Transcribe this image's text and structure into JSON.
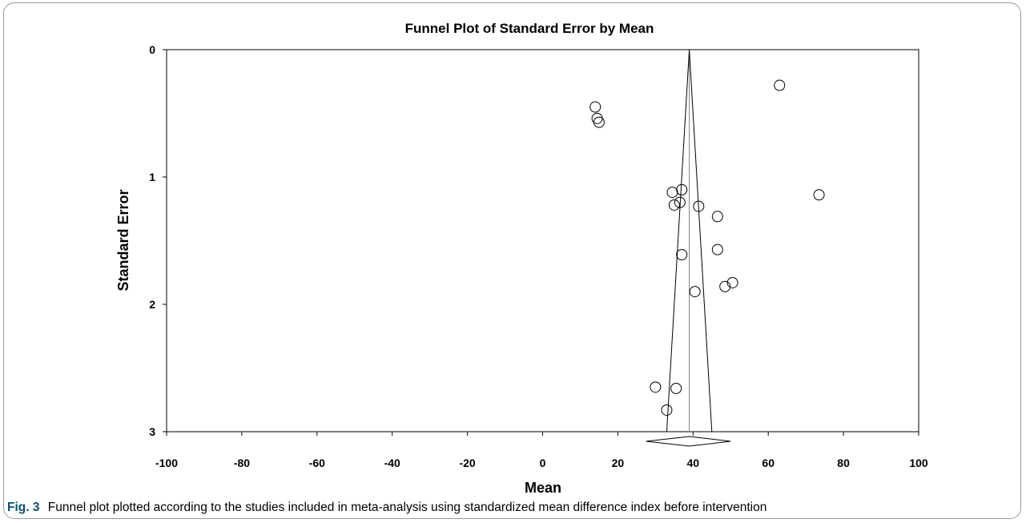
{
  "chart_data": {
    "type": "scatter",
    "title": "Funnel Plot of Standard Error by Mean",
    "xlabel": "Mean",
    "ylabel": "Standard Error",
    "xlim": [
      -100,
      100
    ],
    "ylim": [
      0,
      3
    ],
    "y_inverted": true,
    "x_ticks": [
      -100,
      -80,
      -60,
      -40,
      -20,
      0,
      20,
      40,
      60,
      80,
      100
    ],
    "y_ticks": [
      0,
      1,
      2,
      3
    ],
    "pooled_mean": 39,
    "funnel": {
      "apex_se": 0,
      "base_se": 3,
      "base_x_min": 33,
      "base_x_max": 45
    },
    "summary_diamond": {
      "x_min": 27.5,
      "center": 39,
      "x_max": 50
    },
    "grid": false,
    "points": [
      {
        "x": 14,
        "y": 0.45
      },
      {
        "x": 14.5,
        "y": 0.54
      },
      {
        "x": 15,
        "y": 0.57
      },
      {
        "x": 63,
        "y": 0.28
      },
      {
        "x": 73.5,
        "y": 1.14
      },
      {
        "x": 34.5,
        "y": 1.12
      },
      {
        "x": 37,
        "y": 1.1
      },
      {
        "x": 35,
        "y": 1.22
      },
      {
        "x": 36.5,
        "y": 1.2
      },
      {
        "x": 41.5,
        "y": 1.23
      },
      {
        "x": 46.5,
        "y": 1.31
      },
      {
        "x": 46.5,
        "y": 1.57
      },
      {
        "x": 37,
        "y": 1.61
      },
      {
        "x": 50.5,
        "y": 1.83
      },
      {
        "x": 48.5,
        "y": 1.86
      },
      {
        "x": 40.5,
        "y": 1.9
      },
      {
        "x": 30,
        "y": 2.65
      },
      {
        "x": 35.5,
        "y": 2.66
      },
      {
        "x": 33,
        "y": 2.83
      }
    ]
  },
  "caption": {
    "label": "Fig. 3",
    "text": "Funnel plot plotted according to the studies included in meta-analysis using standardized mean difference index before intervention"
  },
  "colors": {
    "axis": "#000000",
    "marker_stroke": "#000000",
    "funnel": "#000000",
    "pooled_line": "#7f7f7f",
    "caption_label": "#0b4f6c",
    "frame_border": "#9a9a9a"
  }
}
